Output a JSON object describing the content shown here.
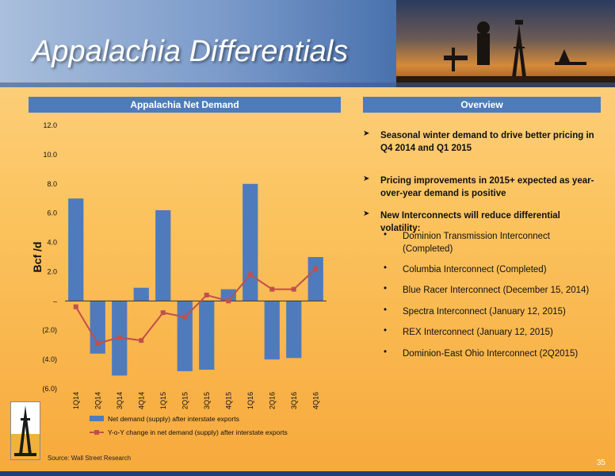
{
  "title": "Appalachia Differentials",
  "left_panel": {
    "title": "Appalachia Net Demand"
  },
  "right_panel": {
    "title": "Overview"
  },
  "overview": {
    "bullets": [
      "Seasonal winter demand to drive better pricing in Q4 2014 and Q1 2015",
      "Pricing improvements in 2015+ expected as year-over-year demand is positive",
      "New Interconnects will reduce differential volatility:"
    ],
    "sub_bullets": [
      "Dominion Transmission Interconnect (Completed)",
      "Columbia Interconnect (Completed)",
      "Blue Racer Interconnect (December 15, 2014)",
      "Spectra Interconnect (January 12, 2015)",
      "REX Interconnect (January 12, 2015)",
      "Dominion-East Ohio Interconnect (2Q2015)"
    ]
  },
  "chart_data": {
    "type": "bar",
    "categories": [
      "1Q14",
      "2Q14",
      "3Q14",
      "4Q14",
      "1Q15",
      "2Q15",
      "3Q15",
      "4Q15",
      "1Q16",
      "2Q16",
      "3Q16",
      "4Q16"
    ],
    "series": [
      {
        "name": "Net demand (supply) after interstate exports",
        "type": "bar",
        "color": "#4f7bbd",
        "values": [
          7.0,
          -3.6,
          -5.1,
          0.9,
          6.2,
          -4.8,
          -4.7,
          0.8,
          8.0,
          -4.0,
          -3.9,
          3.0
        ]
      },
      {
        "name": "Y-o-Y change in net demand (supply) after interstate exports",
        "type": "line",
        "color": "#c0504d",
        "values": [
          -0.4,
          -2.9,
          -2.5,
          -2.7,
          -0.8,
          -1.1,
          0.4,
          0.0,
          1.8,
          0.8,
          0.8,
          2.2
        ]
      }
    ],
    "ylabel": "Bcf /d",
    "ylim": [
      -6,
      12
    ],
    "yticks": [
      12,
      10,
      8,
      6,
      4,
      2,
      0,
      -2,
      -4,
      -6
    ],
    "ytick_labels": [
      "12.0",
      "10.0",
      "8.0",
      "6.0",
      "4.0",
      "2.0",
      "–",
      "(2.0)",
      "(4.0)",
      "(6.0)"
    ],
    "legend_position": "bottom"
  },
  "source": "Source: Wall Street Research",
  "page_number": "35"
}
